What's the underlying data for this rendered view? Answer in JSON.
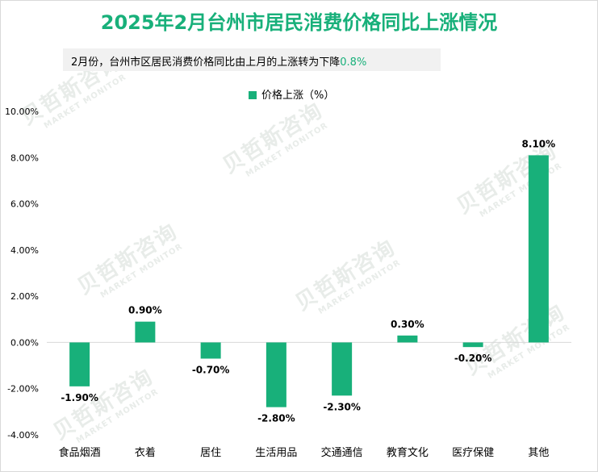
{
  "title": "2025年2月台州市居民消费价格同比上涨情况",
  "subtitle": {
    "text": "2月份，台州市区居民消费价格同比由上月的上涨转为下降",
    "highlight": "0.8%"
  },
  "watermark": {
    "cn": "贝哲斯咨询",
    "en": "MARKET MONITOR"
  },
  "colors": {
    "accent": "#18b07a",
    "title": "#18b07a"
  },
  "chart_data": {
    "type": "bar",
    "title": "",
    "xlabel": "",
    "ylabel": "",
    "legend": "价格上涨（%）",
    "legend_position": "top-center",
    "categories": [
      "食品烟酒",
      "衣着",
      "居住",
      "生活用品",
      "交通通信",
      "教育文化",
      "医疗保健",
      "其他"
    ],
    "values": [
      -1.9,
      0.9,
      -0.7,
      -2.8,
      -2.3,
      0.3,
      -0.2,
      8.1
    ],
    "value_labels": [
      "-1.90%",
      "0.90%",
      "-0.70%",
      "-2.80%",
      "-2.30%",
      "0.30%",
      "-0.20%",
      "8.10%"
    ],
    "yticks": [
      "10.00%",
      "8.00%",
      "6.00%",
      "4.00%",
      "2.00%",
      "0.00%",
      "-2.00%",
      "-4.00%"
    ],
    "ytick_values": [
      10,
      8,
      6,
      4,
      2,
      0,
      -2,
      -4
    ],
    "ylim": [
      -4,
      10
    ],
    "grid": false
  }
}
